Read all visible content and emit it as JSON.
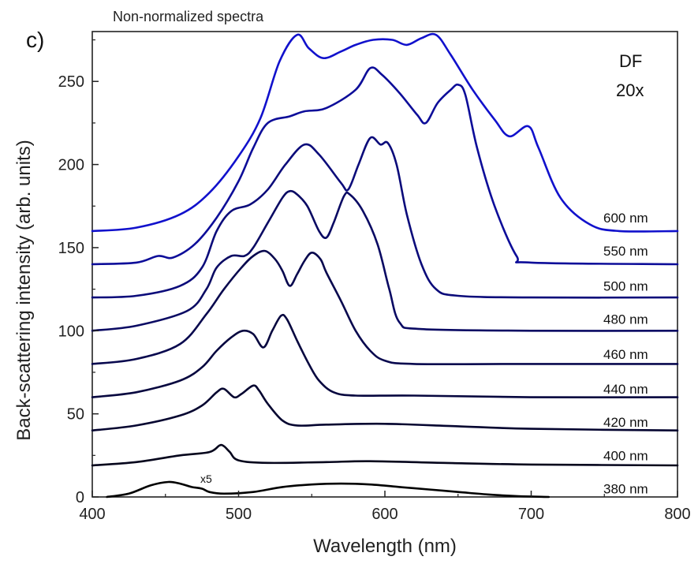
{
  "panel_label": "c)",
  "chart_data": {
    "type": "line",
    "title": "Non-normalized spectra",
    "xlabel": "Wavelength (nm)",
    "ylabel": "Back-scattering intensity (arb. units)",
    "xlim": [
      400,
      800
    ],
    "ylim": [
      0,
      280
    ],
    "xticks": [
      400,
      500,
      600,
      700,
      800
    ],
    "yticks": [
      0,
      50,
      100,
      150,
      200,
      250
    ],
    "grid": false,
    "annotations": {
      "corner_line1": "DF",
      "corner_line2": "20x",
      "scale_note": "x5"
    },
    "series": [
      {
        "name": "380 nm",
        "color": "#000000",
        "x_range": [
          410,
          712
        ],
        "label_y": 5,
        "points": [
          [
            410,
            0
          ],
          [
            425,
            2
          ],
          [
            440,
            7
          ],
          [
            452,
            9
          ],
          [
            460,
            8
          ],
          [
            468,
            6
          ],
          [
            475,
            5
          ],
          [
            480,
            3
          ],
          [
            490,
            2
          ],
          [
            510,
            3
          ],
          [
            530,
            6
          ],
          [
            550,
            7.5
          ],
          [
            570,
            8
          ],
          [
            590,
            7.5
          ],
          [
            610,
            6
          ],
          [
            630,
            4.5
          ],
          [
            650,
            3
          ],
          [
            670,
            1.5
          ],
          [
            690,
            0.5
          ],
          [
            712,
            0
          ]
        ]
      },
      {
        "name": "400 nm",
        "color": "#05051c",
        "x_range": [
          400,
          800
        ],
        "label_y": 25,
        "points": [
          [
            400,
            19
          ],
          [
            430,
            21
          ],
          [
            460,
            25
          ],
          [
            480,
            27
          ],
          [
            487,
            31
          ],
          [
            490,
            30.5
          ],
          [
            494,
            27
          ],
          [
            500,
            22
          ],
          [
            520,
            20.5
          ],
          [
            560,
            21
          ],
          [
            590,
            21.5
          ],
          [
            640,
            20.5
          ],
          [
            700,
            19.5
          ],
          [
            800,
            19
          ]
        ]
      },
      {
        "name": "420 nm",
        "color": "#050530",
        "x_range": [
          400,
          800
        ],
        "label_y": 45,
        "points": [
          [
            400,
            40
          ],
          [
            430,
            43
          ],
          [
            460,
            49
          ],
          [
            475,
            55
          ],
          [
            485,
            63
          ],
          [
            490,
            65
          ],
          [
            497,
            60
          ],
          [
            502,
            62
          ],
          [
            510,
            67
          ],
          [
            514,
            64
          ],
          [
            520,
            56
          ],
          [
            530,
            46
          ],
          [
            540,
            43
          ],
          [
            560,
            43.5
          ],
          [
            600,
            44
          ],
          [
            650,
            42.5
          ],
          [
            700,
            41
          ],
          [
            800,
            40
          ]
        ]
      },
      {
        "name": "440 nm",
        "color": "#07073f",
        "x_range": [
          400,
          800
        ],
        "label_y": 65,
        "points": [
          [
            400,
            60
          ],
          [
            430,
            63
          ],
          [
            460,
            70
          ],
          [
            475,
            78
          ],
          [
            485,
            88
          ],
          [
            495,
            96
          ],
          [
            503,
            100
          ],
          [
            510,
            98
          ],
          [
            517,
            90
          ],
          [
            523,
            100
          ],
          [
            529,
            109
          ],
          [
            533,
            107
          ],
          [
            540,
            94
          ],
          [
            548,
            80
          ],
          [
            555,
            70
          ],
          [
            565,
            63
          ],
          [
            580,
            61
          ],
          [
            620,
            61
          ],
          [
            700,
            60
          ],
          [
            800,
            60
          ]
        ]
      },
      {
        "name": "460 nm",
        "color": "#08084e",
        "x_range": [
          400,
          800
        ],
        "label_y": 86,
        "points": [
          [
            400,
            80
          ],
          [
            430,
            83
          ],
          [
            460,
            92
          ],
          [
            478,
            110
          ],
          [
            490,
            125
          ],
          [
            502,
            138
          ],
          [
            510,
            145
          ],
          [
            518,
            148
          ],
          [
            525,
            143
          ],
          [
            530,
            136
          ],
          [
            535,
            127
          ],
          [
            540,
            134
          ],
          [
            545,
            142
          ],
          [
            550,
            147
          ],
          [
            556,
            143
          ],
          [
            560,
            135
          ],
          [
            570,
            118
          ],
          [
            580,
            100
          ],
          [
            590,
            88
          ],
          [
            600,
            82
          ],
          [
            620,
            80
          ],
          [
            700,
            80
          ],
          [
            800,
            80
          ]
        ]
      },
      {
        "name": "480 nm",
        "color": "#0a0a63",
        "x_range": [
          400,
          800
        ],
        "label_y": 107,
        "points": [
          [
            400,
            100
          ],
          [
            430,
            103
          ],
          [
            465,
            112
          ],
          [
            478,
            125
          ],
          [
            485,
            138
          ],
          [
            495,
            145
          ],
          [
            504,
            145
          ],
          [
            510,
            150
          ],
          [
            520,
            165
          ],
          [
            530,
            180
          ],
          [
            535,
            184
          ],
          [
            540,
            182
          ],
          [
            547,
            175
          ],
          [
            555,
            160
          ],
          [
            560,
            156
          ],
          [
            565,
            165
          ],
          [
            572,
            181
          ],
          [
            576,
            182
          ],
          [
            585,
            172
          ],
          [
            595,
            152
          ],
          [
            603,
            125
          ],
          [
            610,
            105
          ],
          [
            625,
            101
          ],
          [
            700,
            100
          ],
          [
            800,
            100
          ]
        ]
      },
      {
        "name": "500 nm",
        "color": "#0b0b7a",
        "x_range": [
          400,
          800
        ],
        "label_y": 127,
        "points": [
          [
            400,
            120
          ],
          [
            430,
            121
          ],
          [
            460,
            127
          ],
          [
            475,
            138
          ],
          [
            485,
            160
          ],
          [
            495,
            172
          ],
          [
            508,
            176
          ],
          [
            520,
            185
          ],
          [
            532,
            200
          ],
          [
            545,
            212
          ],
          [
            555,
            206
          ],
          [
            570,
            189
          ],
          [
            575,
            185
          ],
          [
            582,
            200
          ],
          [
            590,
            216
          ],
          [
            597,
            212
          ],
          [
            602,
            213
          ],
          [
            608,
            200
          ],
          [
            615,
            170
          ],
          [
            625,
            140
          ],
          [
            635,
            125
          ],
          [
            650,
            121
          ],
          [
            700,
            120
          ],
          [
            800,
            120
          ]
        ]
      },
      {
        "name": "550 nm",
        "color": "#0d0d99",
        "x_range": [
          400,
          800
        ],
        "label_y": 148,
        "points": [
          [
            400,
            140
          ],
          [
            430,
            141
          ],
          [
            445,
            145
          ],
          [
            455,
            144
          ],
          [
            470,
            152
          ],
          [
            485,
            168
          ],
          [
            500,
            190
          ],
          [
            510,
            210
          ],
          [
            520,
            225
          ],
          [
            535,
            229
          ],
          [
            545,
            232
          ],
          [
            560,
            234
          ],
          [
            580,
            245
          ],
          [
            590,
            258
          ],
          [
            598,
            254
          ],
          [
            610,
            243
          ],
          [
            622,
            230
          ],
          [
            628,
            225
          ],
          [
            636,
            237
          ],
          [
            645,
            245
          ],
          [
            650,
            248
          ],
          [
            655,
            242
          ],
          [
            663,
            210
          ],
          [
            675,
            175
          ],
          [
            690,
            145
          ],
          [
            700,
            141
          ],
          [
            800,
            140
          ]
        ]
      },
      {
        "name": "600 nm",
        "color": "#1111cc",
        "x_range": [
          400,
          800
        ],
        "label_y": 168,
        "points": [
          [
            400,
            160
          ],
          [
            430,
            162
          ],
          [
            460,
            170
          ],
          [
            480,
            183
          ],
          [
            500,
            205
          ],
          [
            515,
            228
          ],
          [
            528,
            262
          ],
          [
            540,
            278
          ],
          [
            548,
            270
          ],
          [
            558,
            264
          ],
          [
            570,
            268
          ],
          [
            580,
            272
          ],
          [
            592,
            275
          ],
          [
            605,
            275
          ],
          [
            615,
            272
          ],
          [
            625,
            276
          ],
          [
            635,
            278
          ],
          [
            645,
            266
          ],
          [
            660,
            245
          ],
          [
            675,
            227
          ],
          [
            685,
            217
          ],
          [
            698,
            223
          ],
          [
            705,
            210
          ],
          [
            720,
            180
          ],
          [
            740,
            164
          ],
          [
            760,
            160
          ],
          [
            800,
            160
          ]
        ]
      }
    ]
  }
}
